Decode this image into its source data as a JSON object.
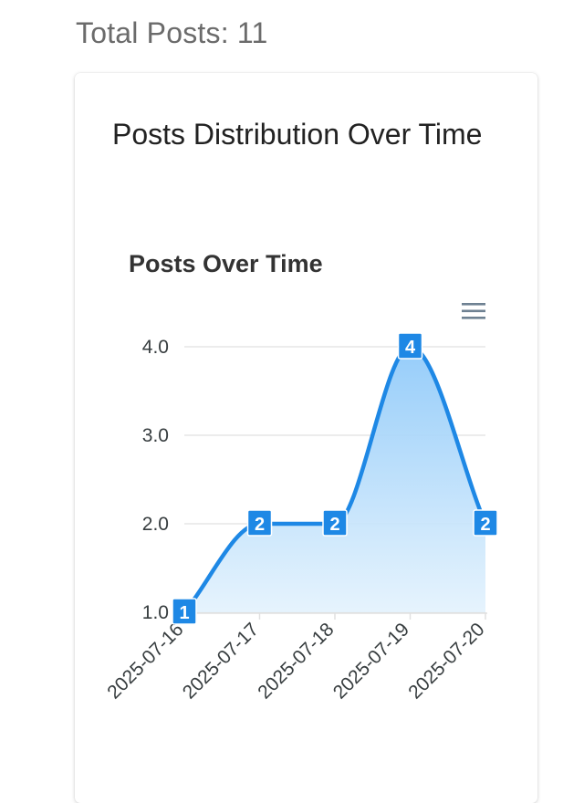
{
  "summary": {
    "total_posts_text": "Total Posts: 11"
  },
  "card": {
    "title": "Posts Distribution Over Time"
  },
  "toolbar": {
    "menu_icon": "hamburger-menu-icon"
  },
  "colors": {
    "series": "#1e88e5",
    "fill_top": "#90caf9",
    "fill_bottom": "#e3f2fd",
    "grid": "#e0e0e0"
  },
  "chart_data": {
    "type": "area",
    "title": "Posts Over Time",
    "categories": [
      "2025-07-16",
      "2025-07-17",
      "2025-07-18",
      "2025-07-19",
      "2025-07-20"
    ],
    "series": [
      {
        "values": [
          1,
          2,
          2,
          4,
          2
        ]
      }
    ],
    "ylim": [
      1,
      4
    ],
    "yticks": [
      "1.0",
      "2.0",
      "3.0",
      "4.0"
    ],
    "data_labels": true,
    "grid": true,
    "legend": "none",
    "curve": "smooth"
  }
}
